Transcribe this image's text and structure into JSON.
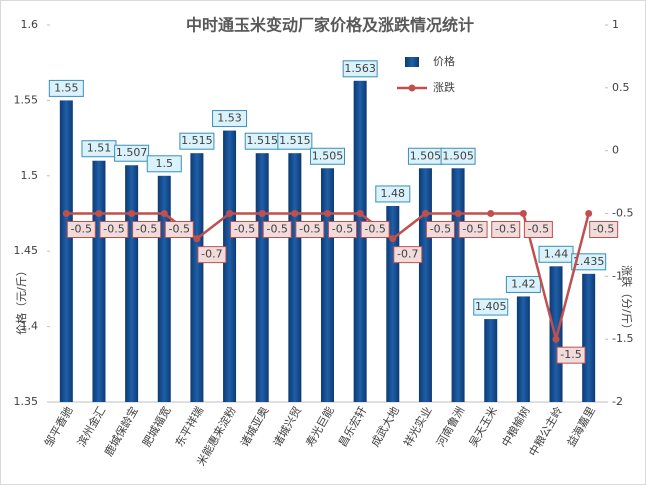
{
  "chart_data": {
    "type": "bar-line",
    "title": "中时通玉米变动厂家价格及涨跌情况统计",
    "y_label": "价格（元/斤）",
    "y2_label": "涨跌（分/斤）",
    "categories": [
      "邹平香驰",
      "滨州金汇",
      "鹿城保龄宝",
      "肥城福宽",
      "东平祥瑞",
      "米能惠来淀粉",
      "诸城亚奥",
      "诸城兴贸",
      "寿光巨能",
      "昌乐宏轩",
      "成武大地",
      "祥光实业",
      "河南鲁洲",
      "吴天玉米",
      "中粮榆树",
      "中粮公主岭",
      "益海嘉里"
    ],
    "series": [
      {
        "name": "价格",
        "type": "bar",
        "color": "#1f5fa8",
        "values": [
          1.55,
          1.51,
          1.507,
          1.5,
          1.515,
          1.53,
          1.515,
          1.515,
          1.505,
          1.563,
          1.48,
          1.505,
          1.505,
          1.405,
          1.42,
          1.44,
          1.435
        ]
      },
      {
        "name": "涨跌",
        "type": "line",
        "axis": "y2",
        "color": "#c0504d",
        "values": [
          -0.5,
          -0.5,
          -0.5,
          -0.5,
          -0.7,
          -0.5,
          -0.5,
          -0.5,
          -0.5,
          -0.5,
          -0.7,
          -0.5,
          -0.5,
          -0.5,
          -0.5,
          -1.5,
          -0.5
        ]
      }
    ],
    "ylim": [
      1.35,
      1.6
    ],
    "yticks": [
      1.35,
      1.4,
      1.45,
      1.5,
      1.55,
      1.6
    ],
    "y2lim": [
      -2,
      1
    ],
    "y2ticks": [
      -2,
      -1.5,
      -1,
      -0.5,
      0,
      0.5,
      1
    ],
    "legend": "top-right"
  }
}
